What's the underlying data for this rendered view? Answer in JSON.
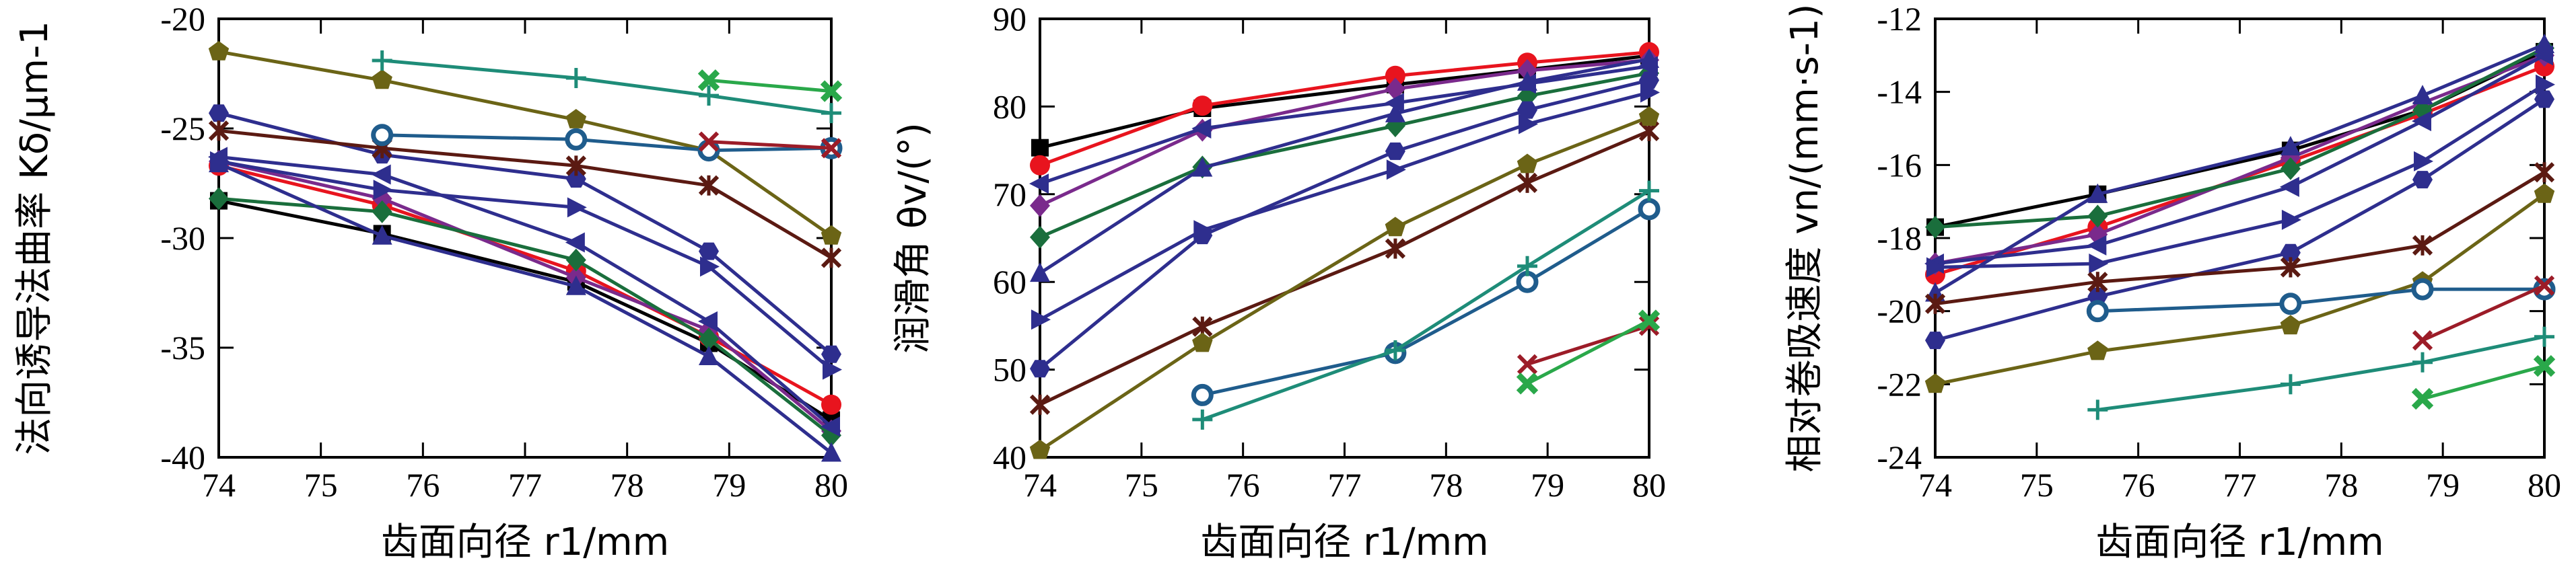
{
  "chart_data": [
    {
      "type": "line",
      "title": "",
      "xlabel": "齿面向径 r1/mm",
      "ylabel": "法向诱导法曲率 Kδ/μm-1",
      "xlim": [
        74,
        80
      ],
      "ylim": [
        -40,
        -20
      ],
      "xticks": [
        74,
        75,
        76,
        77,
        78,
        79,
        80
      ],
      "yticks": [
        -20,
        -25,
        -30,
        -35,
        -40
      ],
      "ytick_labels": [
        "-20",
        "-25",
        "-30",
        "-35",
        "-40"
      ],
      "legend": "none",
      "grid": false,
      "series": [
        {
          "color": "#000000",
          "marker": "square",
          "x": [
            74,
            75.6,
            77.5,
            78.8,
            80
          ],
          "y": [
            -28.3,
            -29.8,
            -32.0,
            -34.8,
            -38.3
          ]
        },
        {
          "color": "#e8141e",
          "marker": "circle",
          "x": [
            74,
            75.6,
            77.5,
            78.8,
            80
          ],
          "y": [
            -26.7,
            -28.5,
            -31.5,
            -34.5,
            -37.6
          ]
        },
        {
          "color": "#7a2a8c",
          "marker": "diamond",
          "x": [
            74,
            75.6,
            77.5,
            78.8,
            80
          ],
          "y": [
            -26.5,
            -28.2,
            -31.8,
            -34.2,
            -38.8
          ]
        },
        {
          "color": "#1a6e3c",
          "marker": "diamond",
          "x": [
            74,
            75.6,
            77.5,
            78.8,
            80
          ],
          "y": [
            -28.2,
            -28.8,
            -31.0,
            -34.6,
            -39.0
          ]
        },
        {
          "color": "#2e2e8e",
          "marker": "triangle-left",
          "x": [
            74,
            75.6,
            77.5,
            78.8,
            80
          ],
          "y": [
            -26.3,
            -27.1,
            -30.2,
            -33.8,
            -38.6
          ]
        },
        {
          "color": "#2e2e8e",
          "marker": "triangle-right",
          "x": [
            74,
            75.6,
            77.5,
            78.8,
            80
          ],
          "y": [
            -26.5,
            -27.8,
            -28.6,
            -31.3,
            -36.0
          ]
        },
        {
          "color": "#2e2e8e",
          "marker": "hexagon",
          "x": [
            74,
            75.6,
            77.5,
            78.8,
            80
          ],
          "y": [
            -24.3,
            -26.2,
            -27.3,
            -30.6,
            -35.3
          ]
        },
        {
          "color": "#2e2e8e",
          "marker": "triangle-up",
          "x": [
            74,
            75.6,
            77.5,
            78.8,
            80
          ],
          "y": [
            -26.6,
            -29.9,
            -32.2,
            -35.4,
            -39.8
          ]
        },
        {
          "color": "#5b1a12",
          "marker": "star",
          "x": [
            74,
            75.6,
            77.5,
            78.8,
            80
          ],
          "y": [
            -25.1,
            -25.9,
            -26.7,
            -27.6,
            -30.9
          ]
        },
        {
          "color": "#6b6416",
          "marker": "pentagon",
          "x": [
            74,
            75.6,
            77.5,
            78.8,
            80
          ],
          "y": [
            -21.5,
            -22.8,
            -24.6,
            -26.0,
            -29.9
          ]
        },
        {
          "color": "#1f5c8c",
          "marker": "circle-open",
          "x": [
            75.6,
            77.5,
            78.8,
            80
          ],
          "y": [
            -25.3,
            -25.5,
            -26.0,
            -25.9
          ]
        },
        {
          "color": "#1e8c78",
          "marker": "plus",
          "x": [
            75.6,
            77.5,
            78.8,
            80
          ],
          "y": [
            -21.9,
            -22.7,
            -23.5,
            -24.3
          ]
        },
        {
          "color": "#9c1c28",
          "marker": "x",
          "x": [
            78.8,
            80
          ],
          "y": [
            -25.6,
            -25.9
          ]
        },
        {
          "color": "#2aa84a",
          "marker": "x-square",
          "x": [
            78.8,
            80
          ],
          "y": [
            -22.8,
            -23.3
          ]
        }
      ]
    },
    {
      "type": "line",
      "title": "",
      "xlabel": "齿面向径 r1/mm",
      "ylabel": "润滑角 θv/(°)",
      "xlim": [
        74,
        80
      ],
      "ylim": [
        40,
        90
      ],
      "xticks": [
        74,
        75,
        76,
        77,
        78,
        79,
        80
      ],
      "yticks": [
        40,
        50,
        60,
        70,
        80,
        90
      ],
      "ytick_labels": [
        "40",
        "50",
        "60",
        "70",
        "80",
        "90"
      ],
      "legend": "none",
      "grid": false,
      "series": [
        {
          "color": "#000000",
          "marker": "square",
          "x": [
            74,
            75.6,
            77.5,
            78.8,
            80
          ],
          "y": [
            75.3,
            79.8,
            82.5,
            84.2,
            85.8
          ]
        },
        {
          "color": "#e8141e",
          "marker": "circle",
          "x": [
            74,
            75.6,
            77.5,
            78.8,
            80
          ],
          "y": [
            73.3,
            80.1,
            83.5,
            85.0,
            86.2
          ]
        },
        {
          "color": "#7a2a8c",
          "marker": "diamond",
          "x": [
            74,
            75.6,
            77.5,
            78.8,
            80
          ],
          "y": [
            68.7,
            77.3,
            82.0,
            84.1,
            85.3
          ]
        },
        {
          "color": "#1a6e3c",
          "marker": "diamond",
          "x": [
            74,
            75.6,
            77.5,
            78.8,
            80
          ],
          "y": [
            65.1,
            73.1,
            77.8,
            81.2,
            83.8
          ]
        },
        {
          "color": "#2e2e8e",
          "marker": "triangle-left",
          "x": [
            74,
            75.6,
            77.5,
            78.8,
            80
          ],
          "y": [
            71.2,
            77.5,
            80.4,
            82.6,
            84.6
          ]
        },
        {
          "color": "#2e2e8e",
          "marker": "triangle-right",
          "x": [
            74,
            75.6,
            77.5,
            78.8,
            80
          ],
          "y": [
            55.7,
            65.9,
            72.8,
            78.0,
            81.6
          ]
        },
        {
          "color": "#2e2e8e",
          "marker": "hexagon",
          "x": [
            74,
            75.6,
            77.5,
            78.8,
            80
          ],
          "y": [
            50.1,
            65.3,
            74.9,
            79.6,
            83.0
          ]
        },
        {
          "color": "#2e2e8e",
          "marker": "triangle-up",
          "x": [
            74,
            75.6,
            77.5,
            78.8,
            80
          ],
          "y": [
            61.0,
            73.0,
            79.2,
            82.8,
            85.4
          ]
        },
        {
          "color": "#5b1a12",
          "marker": "star",
          "x": [
            74,
            75.6,
            77.5,
            78.8,
            80
          ],
          "y": [
            46.0,
            54.9,
            63.8,
            71.3,
            77.2
          ]
        },
        {
          "color": "#6b6416",
          "marker": "pentagon",
          "x": [
            74,
            75.6,
            77.5,
            78.8,
            80
          ],
          "y": [
            40.8,
            53.0,
            66.2,
            73.4,
            78.8
          ]
        },
        {
          "color": "#1f5c8c",
          "marker": "circle-open",
          "x": [
            75.6,
            77.5,
            78.8,
            80
          ],
          "y": [
            47.1,
            51.9,
            60.0,
            68.3
          ]
        },
        {
          "color": "#1e8c78",
          "marker": "plus",
          "x": [
            75.6,
            77.5,
            78.8,
            80
          ],
          "y": [
            44.3,
            52.2,
            61.8,
            70.4
          ]
        },
        {
          "color": "#9c1c28",
          "marker": "x",
          "x": [
            78.8,
            80
          ],
          "y": [
            50.6,
            55.0
          ]
        },
        {
          "color": "#2aa84a",
          "marker": "x-square",
          "x": [
            78.8,
            80
          ],
          "y": [
            48.4,
            55.6
          ]
        }
      ]
    },
    {
      "type": "line",
      "title": "",
      "xlabel": "齿面向径 r1/mm",
      "ylabel": "相对卷吸速度 vn/(mm·s-1)",
      "xlim": [
        74,
        80
      ],
      "ylim": [
        -24,
        -12
      ],
      "xticks": [
        74,
        75,
        76,
        77,
        78,
        79,
        80
      ],
      "yticks": [
        -12,
        -14,
        -16,
        -18,
        -20,
        -22,
        -24
      ],
      "ytick_labels": [
        "-12",
        "-14",
        "-16",
        "-18",
        "-20",
        "-22",
        "-24"
      ],
      "legend": "none",
      "grid": false,
      "series": [
        {
          "color": "#000000",
          "marker": "square",
          "x": [
            74,
            75.6,
            77.5,
            78.8,
            80
          ],
          "y": [
            -17.7,
            -16.8,
            -15.6,
            -14.5,
            -12.9
          ]
        },
        {
          "color": "#e8141e",
          "marker": "circle",
          "x": [
            74,
            75.6,
            77.5,
            78.8,
            80
          ],
          "y": [
            -19.0,
            -17.7,
            -15.9,
            -14.6,
            -13.3
          ]
        },
        {
          "color": "#7a2a8c",
          "marker": "diamond",
          "x": [
            74,
            75.6,
            77.5,
            78.8,
            80
          ],
          "y": [
            -18.7,
            -17.9,
            -15.8,
            -14.3,
            -13.0
          ]
        },
        {
          "color": "#1a6e3c",
          "marker": "diamond",
          "x": [
            74,
            75.6,
            77.5,
            78.8,
            80
          ],
          "y": [
            -17.7,
            -17.4,
            -16.1,
            -14.5,
            -12.8
          ]
        },
        {
          "color": "#2e2e8e",
          "marker": "triangle-left",
          "x": [
            74,
            75.6,
            77.5,
            78.8,
            80
          ],
          "y": [
            -18.7,
            -18.2,
            -16.6,
            -14.8,
            -13.0
          ]
        },
        {
          "color": "#2e2e8e",
          "marker": "triangle-right",
          "x": [
            74,
            75.6,
            77.5,
            78.8,
            80
          ],
          "y": [
            -18.8,
            -18.7,
            -17.5,
            -15.9,
            -13.8
          ]
        },
        {
          "color": "#2e2e8e",
          "marker": "hexagon",
          "x": [
            74,
            75.6,
            77.5,
            78.8,
            80
          ],
          "y": [
            -20.8,
            -19.6,
            -18.4,
            -16.4,
            -14.2
          ]
        },
        {
          "color": "#2e2e8e",
          "marker": "triangle-up",
          "x": [
            74,
            75.6,
            77.5,
            78.8,
            80
          ],
          "y": [
            -19.5,
            -16.8,
            -15.5,
            -14.1,
            -12.7
          ]
        },
        {
          "color": "#5b1a12",
          "marker": "star",
          "x": [
            74,
            75.6,
            77.5,
            78.8,
            80
          ],
          "y": [
            -19.8,
            -19.2,
            -18.8,
            -18.2,
            -16.2
          ]
        },
        {
          "color": "#6b6416",
          "marker": "pentagon",
          "x": [
            74,
            75.6,
            77.5,
            78.8,
            80
          ],
          "y": [
            -22.0,
            -21.1,
            -20.4,
            -19.2,
            -16.8
          ]
        },
        {
          "color": "#1f5c8c",
          "marker": "circle-open",
          "x": [
            75.6,
            77.5,
            78.8,
            80
          ],
          "y": [
            -20.0,
            -19.8,
            -19.4,
            -19.4
          ]
        },
        {
          "color": "#1e8c78",
          "marker": "plus",
          "x": [
            75.6,
            77.5,
            78.8,
            80
          ],
          "y": [
            -22.7,
            -22.0,
            -21.4,
            -20.7
          ]
        },
        {
          "color": "#9c1c28",
          "marker": "x",
          "x": [
            78.8,
            80
          ],
          "y": [
            -20.8,
            -19.3
          ]
        },
        {
          "color": "#2aa84a",
          "marker": "x-square",
          "x": [
            78.8,
            80
          ],
          "y": [
            -22.4,
            -21.5
          ]
        }
      ]
    }
  ]
}
